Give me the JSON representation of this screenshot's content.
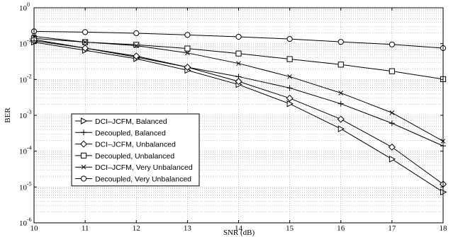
{
  "chart_data": {
    "type": "line",
    "title": "",
    "xlabel": "SNR (dB)",
    "ylabel": "BER",
    "xlim": [
      10,
      18
    ],
    "ylim": [
      1e-06,
      1
    ],
    "y_scale": "log",
    "grid": true,
    "legend_position": "lower-left",
    "x_ticks": [
      "10",
      "11",
      "12",
      "13",
      "14",
      "15",
      "16",
      "17",
      "18"
    ],
    "y_ticks": [
      {
        "base": "10",
        "exp": "0"
      },
      {
        "base": "10",
        "exp": "-1"
      },
      {
        "base": "10",
        "exp": "-2"
      },
      {
        "base": "10",
        "exp": "-3"
      },
      {
        "base": "10",
        "exp": "-4"
      },
      {
        "base": "10",
        "exp": "-5"
      },
      {
        "base": "10",
        "exp": "-6"
      }
    ],
    "x": [
      10,
      11,
      12,
      13,
      14,
      15,
      16,
      17,
      18
    ],
    "series": [
      {
        "name": "DCI–JCFM, Balanced",
        "marker": "triangle-right",
        "values": [
          0.11,
          0.065,
          0.038,
          0.018,
          0.0072,
          0.0021,
          0.00042,
          6e-05,
          7.2e-06
        ]
      },
      {
        "name": "Decoupled, Balanced",
        "marker": "plus",
        "values": [
          0.13,
          0.075,
          0.042,
          0.022,
          0.012,
          0.0058,
          0.0021,
          0.0006,
          0.00014
        ]
      },
      {
        "name": "DCI–JCFM, Unbalanced",
        "marker": "diamond",
        "values": [
          0.12,
          0.075,
          0.045,
          0.022,
          0.0088,
          0.003,
          0.00078,
          0.00013,
          1.2e-05
        ]
      },
      {
        "name": "Decoupled, Unbalanced",
        "marker": "square",
        "values": [
          0.14,
          0.11,
          0.093,
          0.073,
          0.053,
          0.037,
          0.026,
          0.017,
          0.0102
        ]
      },
      {
        "name": "DCI–JCFM, Very Unbalanced",
        "marker": "x",
        "values": [
          0.16,
          0.11,
          0.088,
          0.055,
          0.028,
          0.012,
          0.0042,
          0.00118,
          0.00019
        ]
      },
      {
        "name": "Decoupled, Very Unbalanced",
        "marker": "circle",
        "values": [
          0.22,
          0.21,
          0.195,
          0.175,
          0.155,
          0.135,
          0.112,
          0.095,
          0.075
        ]
      }
    ]
  }
}
